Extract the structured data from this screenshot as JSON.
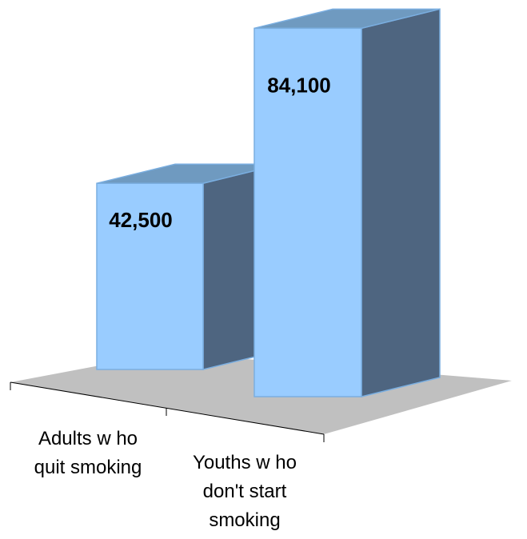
{
  "chart_data": {
    "type": "bar",
    "three_d": true,
    "categories": [
      [
        "Adults w ho",
        "quit smoking"
      ],
      [
        "Youths w ho",
        "don't start",
        "smoking"
      ]
    ],
    "values": [
      42500,
      84100
    ],
    "data_labels": [
      "42,500",
      "84,100"
    ],
    "ylim": [
      0,
      90000
    ],
    "grid": false,
    "legend": "none",
    "colors": {
      "front": "#99ccff",
      "top": "#6f9ac0",
      "side": "#4e6580",
      "edge": "#7aaee0",
      "floor": "#c0c0c0"
    }
  }
}
